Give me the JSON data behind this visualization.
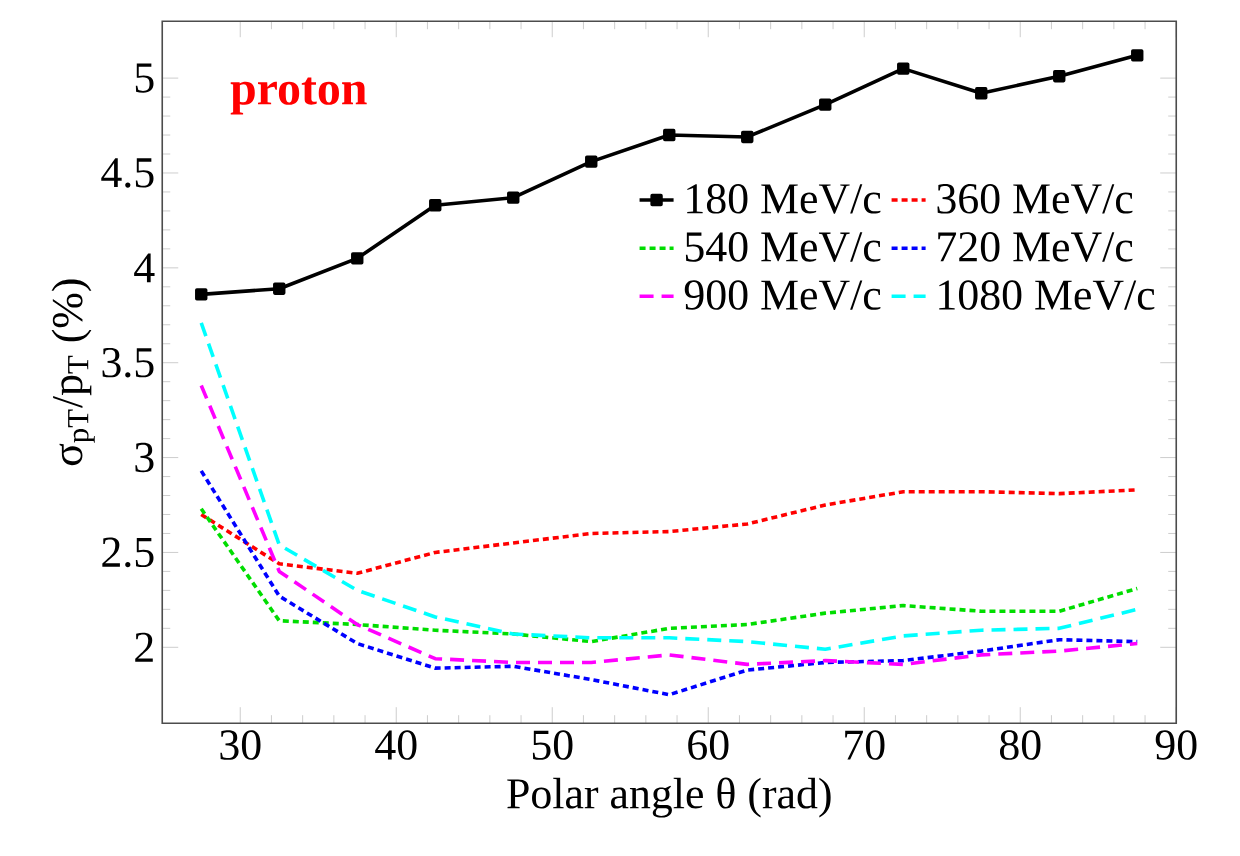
{
  "chart_data": {
    "type": "line",
    "xlabel": "Polar angle θ (rad)",
    "ylabel": "σ$_{pT}$/p$_{T}$ (%)",
    "annotations": [
      "proton"
    ],
    "x": [
      27.5,
      32.5,
      37.5,
      42.5,
      47.5,
      52.5,
      57.5,
      62.5,
      67.5,
      72.5,
      77.5,
      82.5,
      87.5
    ],
    "series": [
      {
        "name": "180 MeV/c",
        "color": "#000000",
        "line_style": "solid",
        "marker": "square",
        "values": [
          3.86,
          3.89,
          4.05,
          4.33,
          4.37,
          4.56,
          4.7,
          4.69,
          4.86,
          5.05,
          4.92,
          5.01,
          5.12
        ]
      },
      {
        "name": "360 MeV/c",
        "color": "#ff0000",
        "line_style": "dotted",
        "values": [
          2.7,
          2.44,
          2.39,
          2.5,
          2.55,
          2.6,
          2.61,
          2.65,
          2.75,
          2.82,
          2.82,
          2.81,
          2.83
        ]
      },
      {
        "name": "540 MeV/c",
        "color": "#00dd00",
        "line_style": "dotted",
        "values": [
          2.73,
          2.14,
          2.12,
          2.09,
          2.07,
          2.03,
          2.1,
          2.12,
          2.18,
          2.22,
          2.19,
          2.19,
          2.31
        ]
      },
      {
        "name": "720 MeV/c",
        "color": "#0000ff",
        "line_style": "dotted",
        "values": [
          2.93,
          2.27,
          2.02,
          1.89,
          1.9,
          1.83,
          1.75,
          1.88,
          1.92,
          1.93,
          1.98,
          2.04,
          2.03
        ]
      },
      {
        "name": "900 MeV/c",
        "color": "#ff00ff",
        "line_style": "dashed",
        "values": [
          3.38,
          2.4,
          2.12,
          1.94,
          1.92,
          1.92,
          1.96,
          1.91,
          1.93,
          1.91,
          1.96,
          1.98,
          2.02
        ]
      },
      {
        "name": "1080 MeV/c",
        "color": "#00ffff",
        "line_style": "dashed",
        "values": [
          3.71,
          2.54,
          2.3,
          2.16,
          2.07,
          2.05,
          2.05,
          2.03,
          1.99,
          2.06,
          2.09,
          2.1,
          2.2
        ]
      }
    ],
    "xlim": [
      25,
      90
    ],
    "xticks": [
      30,
      40,
      50,
      60,
      70,
      80,
      90
    ],
    "ylim": [
      1.6,
      5.3
    ],
    "yticks": [
      2,
      2.5,
      3,
      3.5,
      4,
      4.5,
      5
    ],
    "legend": "top right",
    "grid": false
  }
}
